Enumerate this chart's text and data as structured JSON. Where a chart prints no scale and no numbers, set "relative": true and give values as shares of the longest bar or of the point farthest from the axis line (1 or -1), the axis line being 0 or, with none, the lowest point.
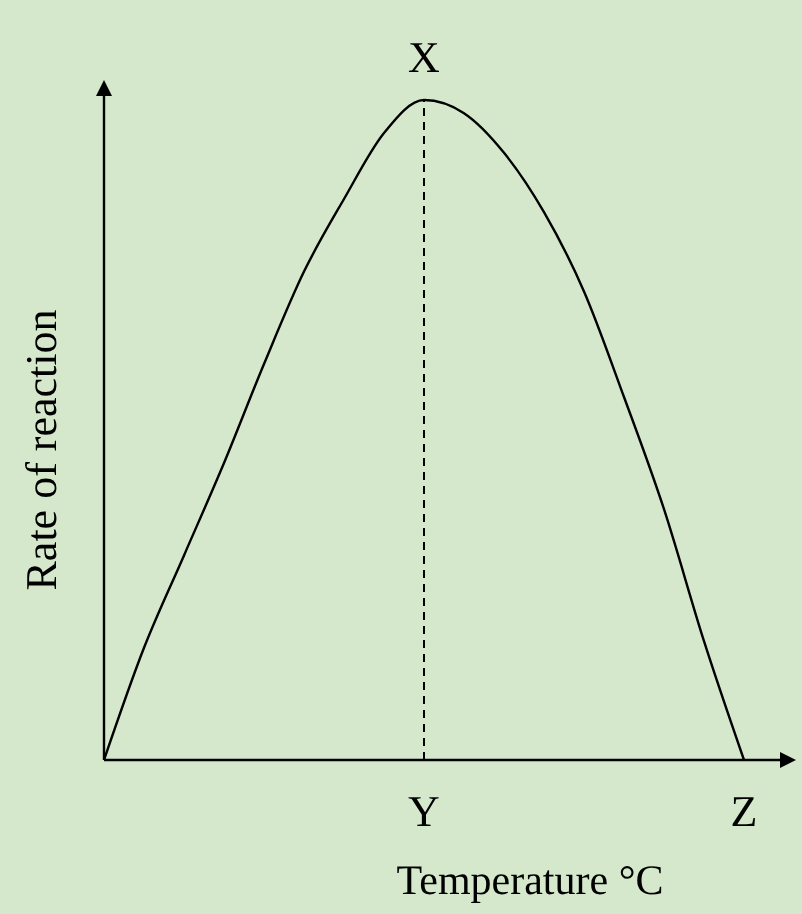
{
  "chart_data": {
    "type": "line",
    "relative": true,
    "xlabel": "Temperature °C",
    "ylabel": "Rate of reaction",
    "tick_labels": "x",
    "categories": [
      null,
      null,
      null,
      null,
      null,
      null,
      null,
      null,
      "Y",
      null,
      null,
      null,
      null,
      null,
      null,
      null,
      "Z"
    ],
    "series": [
      {
        "color": "#000000",
        "values": [
          0,
          0.17,
          0.31,
          0.45,
          0.6,
          0.74,
          0.85,
          0.95,
          1,
          0.98,
          0.92,
          0.83,
          0.71,
          0.55,
          0.38,
          0.18,
          0
        ]
      }
    ],
    "ref_lines": [
      {
        "axis": "x",
        "value": "Y",
        "label": null,
        "line_style": "dashed",
        "color": "#000000"
      }
    ],
    "annotations": [
      {
        "text": "X",
        "x": "Y",
        "y": 1
      }
    ]
  }
}
